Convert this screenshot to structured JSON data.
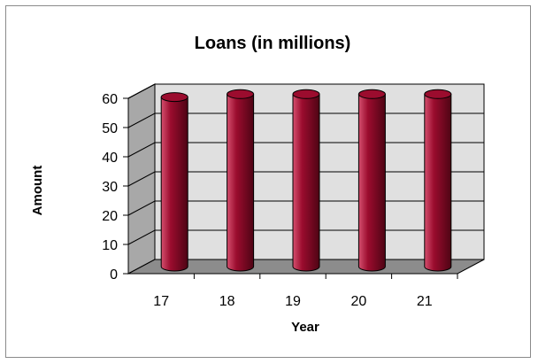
{
  "chart_data": {
    "type": "bar",
    "style": "3d-cylinder",
    "title": "Loans (in millions)",
    "xlabel": "Year",
    "ylabel": "Amount",
    "categories": [
      "17",
      "18",
      "19",
      "20",
      "21"
    ],
    "values": [
      58,
      59,
      59,
      59,
      59
    ],
    "ylim": [
      0,
      60
    ],
    "yticks": [
      "0",
      "10",
      "20",
      "30",
      "40",
      "50",
      "60"
    ],
    "grid": true,
    "legend": "none",
    "colors": {
      "bar": "#9b0c2e",
      "bar_highlight": "#d5506f",
      "bar_shadow": "#4e0414",
      "back_wall": "#e0e0e0",
      "side_wall": "#a8a8a8",
      "floor": "#8c8c8c",
      "gridline": "#000000"
    }
  }
}
